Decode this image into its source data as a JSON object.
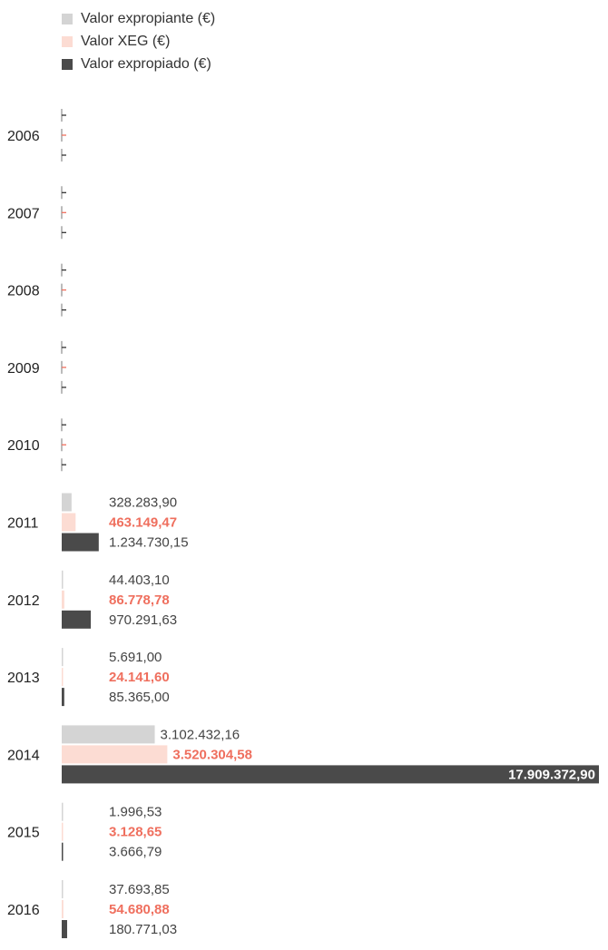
{
  "legend": [
    {
      "label": "Valor expropiante (€)",
      "color": "#d4d4d4",
      "icon": "square-swatch"
    },
    {
      "label": "Valor XEG (€)",
      "color": "#fcdcd3",
      "icon": "square-swatch"
    },
    {
      "label": "Valor expropiado (€)",
      "color": "#4a4a4a",
      "icon": "square-swatch"
    }
  ],
  "colors": {
    "expropiante": "#d4d4d4",
    "xeg": "#fcdcd3",
    "xeg_text": "#ef6f5e",
    "expropiado": "#4a4a4a",
    "axis": "#777777"
  },
  "chart_data": {
    "type": "bar",
    "orientation": "horizontal",
    "grid": false,
    "legend_position": "top-left",
    "xlim": [
      0,
      17909372.9
    ],
    "categories": [
      "2006",
      "2007",
      "2008",
      "2009",
      "2010",
      "2011",
      "2012",
      "2013",
      "2014",
      "2015",
      "2016"
    ],
    "series": [
      {
        "name": "Valor expropiante (€)",
        "values": [
          null,
          null,
          null,
          null,
          null,
          328283.9,
          44403.1,
          5691.0,
          3102432.16,
          1996.53,
          37693.85
        ],
        "labels": [
          "-",
          "-",
          "-",
          "-",
          "-",
          "328.283,90",
          "44.403,10",
          "5.691,00",
          "3.102.432,16",
          "1.996,53",
          "37.693,85"
        ]
      },
      {
        "name": "Valor XEG (€)",
        "values": [
          null,
          null,
          null,
          null,
          null,
          463149.47,
          86778.78,
          24141.6,
          3520304.58,
          3128.65,
          54680.88
        ],
        "labels": [
          "-",
          "-",
          "-",
          "-",
          "-",
          "463.149,47",
          "86.778,78",
          "24.141,60",
          "3.520.304,58",
          "3.128,65",
          "54.680,88"
        ]
      },
      {
        "name": "Valor expropiado (€)",
        "values": [
          null,
          null,
          null,
          null,
          null,
          1234730.15,
          970291.63,
          85365.0,
          17909372.9,
          3666.79,
          180771.03
        ],
        "labels": [
          "-",
          "-",
          "-",
          "-",
          "-",
          "1.234.730,15",
          "970.291,63",
          "85.365,00",
          "17.909.372,90",
          "3.666,79",
          "180.771,03"
        ]
      }
    ]
  }
}
